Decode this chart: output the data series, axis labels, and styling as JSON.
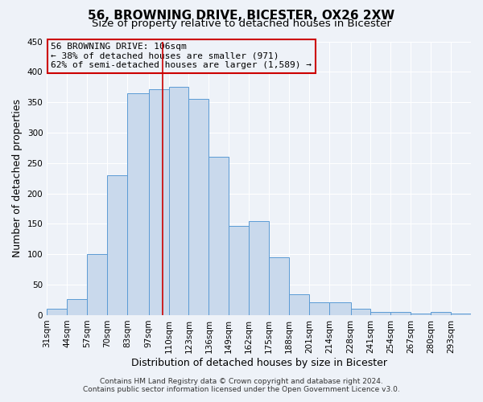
{
  "title": "56, BROWNING DRIVE, BICESTER, OX26 2XW",
  "subtitle": "Size of property relative to detached houses in Bicester",
  "xlabel": "Distribution of detached houses by size in Bicester",
  "ylabel": "Number of detached properties",
  "bin_labels": [
    "31sqm",
    "44sqm",
    "57sqm",
    "70sqm",
    "83sqm",
    "97sqm",
    "110sqm",
    "123sqm",
    "136sqm",
    "149sqm",
    "162sqm",
    "175sqm",
    "188sqm",
    "201sqm",
    "214sqm",
    "228sqm",
    "241sqm",
    "254sqm",
    "267sqm",
    "280sqm",
    "293sqm"
  ],
  "bar_values": [
    10,
    27,
    100,
    230,
    365,
    372,
    375,
    355,
    260,
    147,
    155,
    95,
    34,
    21,
    21,
    11,
    5,
    5,
    2,
    5,
    2
  ],
  "bar_color": "#c9d9ec",
  "bar_edgecolor": "#5b9bd5",
  "property_line_x": 106,
  "bin_edges_sqm": [
    31,
    44,
    57,
    70,
    83,
    97,
    110,
    123,
    136,
    149,
    162,
    175,
    188,
    201,
    214,
    228,
    241,
    254,
    267,
    280,
    293,
    306
  ],
  "ylim": [
    0,
    450
  ],
  "yticks": [
    0,
    50,
    100,
    150,
    200,
    250,
    300,
    350,
    400,
    450
  ],
  "annotation_line1": "56 BROWNING DRIVE: 106sqm",
  "annotation_line2": "← 38% of detached houses are smaller (971)",
  "annotation_line3": "62% of semi-detached houses are larger (1,589) →",
  "annotation_box_edgecolor": "#cc0000",
  "vline_color": "#cc0000",
  "footnote1": "Contains HM Land Registry data © Crown copyright and database right 2024.",
  "footnote2": "Contains public sector information licensed under the Open Government Licence v3.0.",
  "bg_color": "#eef2f8",
  "grid_color": "#ffffff",
  "title_fontsize": 11,
  "subtitle_fontsize": 9.5,
  "axis_label_fontsize": 9,
  "tick_fontsize": 7.5,
  "annotation_fontsize": 8,
  "footnote_fontsize": 6.5
}
